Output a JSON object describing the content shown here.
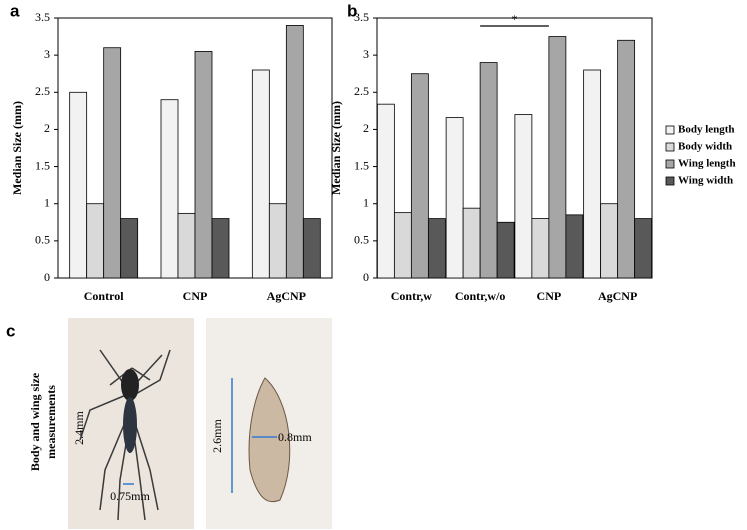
{
  "chart_data": [
    {
      "type": "bar",
      "panel_label": "a",
      "y_label": "Median Size (mm)",
      "categories": [
        "Control",
        "CNP",
        "AgCNP"
      ],
      "series": [
        {
          "color": "#f2f2f2",
          "values": [
            2.5,
            2.4,
            2.8
          ]
        },
        {
          "color": "#d9d9d9",
          "values": [
            1.0,
            0.87,
            1.0
          ]
        },
        {
          "color": "#a6a6a6",
          "values": [
            3.1,
            3.05,
            3.4
          ]
        },
        {
          "color": "#595959",
          "values": [
            0.8,
            0.8,
            0.8
          ]
        }
      ],
      "ylim": [
        0,
        3.5
      ],
      "yticks": [
        0,
        0.5,
        1,
        1.5,
        2,
        2.5,
        3,
        3.5
      ]
    },
    {
      "type": "bar",
      "panel_label": "b",
      "y_label": "Median Size (mm)",
      "categories": [
        "Contr,w",
        "Contr,w/o",
        "CNP",
        "AgCNP"
      ],
      "series": [
        {
          "name": "Body length",
          "color": "#f2f2f2",
          "values": [
            2.34,
            2.16,
            2.2,
            2.8
          ]
        },
        {
          "name": "Body width",
          "color": "#d9d9d9",
          "values": [
            0.88,
            0.94,
            0.8,
            1.0
          ]
        },
        {
          "name": "Wing length",
          "color": "#a6a6a6",
          "values": [
            2.75,
            2.9,
            3.25,
            3.2
          ]
        },
        {
          "name": "Wing width",
          "color": "#595959",
          "values": [
            0.8,
            0.75,
            0.85,
            0.8
          ]
        }
      ],
      "ylim": [
        0,
        3.5
      ],
      "yticks": [
        0,
        0.5,
        1,
        1.5,
        2,
        2.5,
        3,
        3.5
      ],
      "legend": "right",
      "annotations": [
        {
          "text": "*",
          "from": 1,
          "to": 2
        }
      ]
    }
  ],
  "panel_c": {
    "panel_label": "c",
    "caption": [
      "Body and wing size",
      "measurements"
    ],
    "labels": [
      "2.4mm",
      "0.75mm",
      "2.6mm",
      "0.8mm"
    ]
  }
}
